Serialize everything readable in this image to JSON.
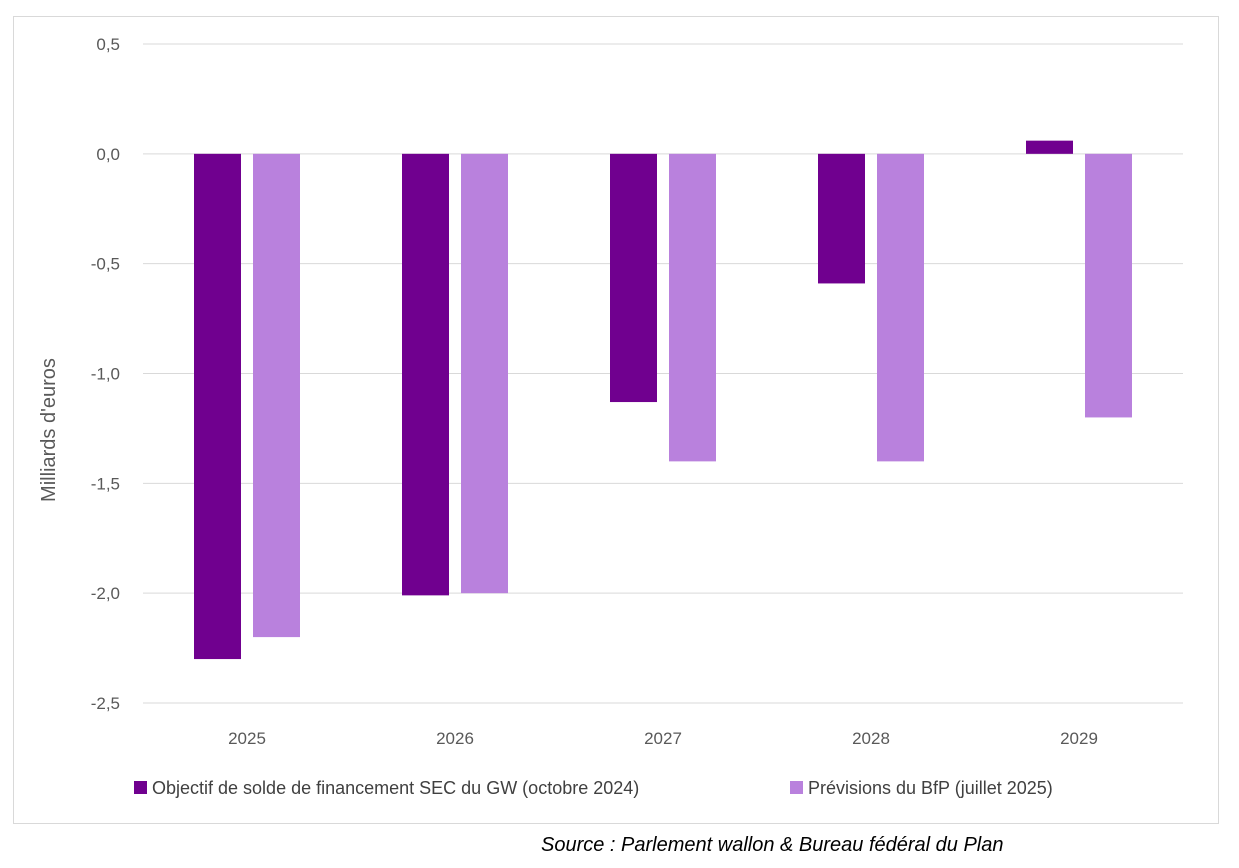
{
  "chart_data": {
    "type": "bar",
    "categories": [
      "2025",
      "2026",
      "2027",
      "2028",
      "2029"
    ],
    "series": [
      {
        "name": "Objectif de solde de financement SEC du GW (octobre 2024)",
        "values": [
          -2.3,
          -2.01,
          -1.13,
          -0.59,
          0.06
        ],
        "color": "#70008f"
      },
      {
        "name": "Prévisions du BfP (juillet 2025)",
        "values": [
          -2.2,
          -2.0,
          -1.4,
          -1.4,
          -1.2
        ],
        "color": "#b981dd"
      }
    ],
    "ylabel": "Milliards d'euros",
    "ylim": [
      -2.5,
      0.5
    ],
    "yticks": [
      0.5,
      0.0,
      -0.5,
      -1.0,
      -1.5,
      -2.0,
      -2.5
    ],
    "ytick_labels": [
      "0,5",
      "0,0",
      "-0,5",
      "-1,0",
      "-1,5",
      "-2,0",
      "-2,5"
    ],
    "grid": true,
    "legend_position": "bottom"
  },
  "source": "Source : Parlement wallon & Bureau fédéral du Plan"
}
